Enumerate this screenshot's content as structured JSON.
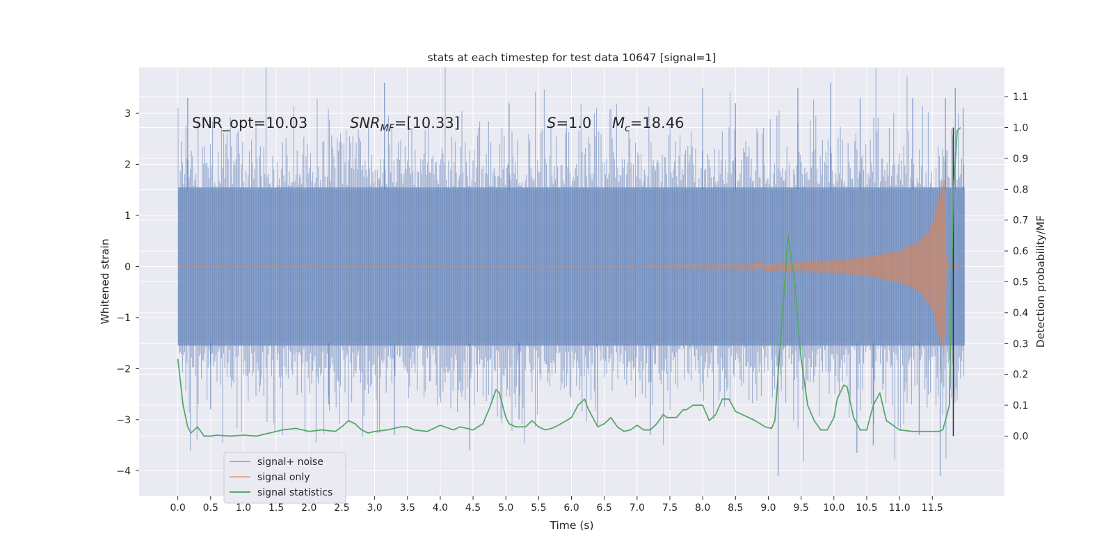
{
  "chart_data": {
    "type": "line",
    "title": "stats at each timestep for test data 10647 [signal=1]",
    "xlabel": "Time (s)",
    "ylabel": "Whitened strain",
    "ylabel_right": "Detection probability/MF",
    "xlim": [
      -0.59,
      12.6
    ],
    "ylim": [
      -4.5,
      3.9
    ],
    "ylim_right": [
      -0.195,
      1.195
    ],
    "x_ticks": [
      0.0,
      0.5,
      1.0,
      1.5,
      2.0,
      2.5,
      3.0,
      3.5,
      4.0,
      4.5,
      5.0,
      5.5,
      6.0,
      6.5,
      7.0,
      7.5,
      8.0,
      8.5,
      9.0,
      9.5,
      10.0,
      10.5,
      11.0,
      11.5
    ],
    "y_ticks": [
      -4,
      -3,
      -2,
      -1,
      0,
      1,
      2,
      3
    ],
    "y_ticks_right": [
      0.0,
      0.1,
      0.2,
      0.3,
      0.4,
      0.5,
      0.6,
      0.7,
      0.8,
      0.9,
      1.0,
      1.1
    ],
    "grid": true,
    "legend_position": "lower-left",
    "colors": {
      "signal_noise": "#4c72b0",
      "signal_only": "#dd8452",
      "statistics": "#55a868",
      "marker_line": "#333333",
      "plot_bg": "#eaeaf2",
      "grid": "#ffffff"
    },
    "annotations": {
      "snr_opt": "SNR_opt=10.03",
      "snr_mf_name": "SNR",
      "snr_mf_sub": "MF",
      "snr_mf_value": "=[10.33]",
      "s_name": "S",
      "s_value": "=1.0",
      "mc_name": "M",
      "mc_sub": "c",
      "mc_value": "=18.46"
    },
    "marker_line": {
      "x": 11.82,
      "y_right_range": [
        0.0,
        1.0
      ]
    },
    "series": [
      {
        "name": "signal+ noise",
        "x_range": [
          0.0,
          12.0
        ],
        "band_typical_abs": 1.55,
        "downward_spikes": [
          [
            0.5,
            -2.8
          ],
          [
            2.3,
            -2.7
          ],
          [
            3.3,
            -3.3
          ],
          [
            4.45,
            -3.6
          ],
          [
            5.2,
            -3.0
          ],
          [
            6.4,
            -3.1
          ],
          [
            7.2,
            -3.3
          ],
          [
            9.15,
            -4.1
          ],
          [
            10.35,
            -3.65
          ],
          [
            10.6,
            -3.5
          ],
          [
            11.3,
            -3.3
          ],
          [
            11.62,
            -4.1
          ]
        ],
        "upward_spikes": [
          [
            0.15,
            3.3
          ],
          [
            3.15,
            3.6
          ],
          [
            5.05,
            3.2
          ],
          [
            8.0,
            3.5
          ],
          [
            8.5,
            3.2
          ],
          [
            9.45,
            3.5
          ],
          [
            9.95,
            3.6
          ],
          [
            10.4,
            3.3
          ],
          [
            11.2,
            3.3
          ],
          [
            11.7,
            3.3
          ],
          [
            11.85,
            3.5
          ],
          [
            11.97,
            3.1
          ]
        ]
      },
      {
        "name": "signal only",
        "envelope": [
          [
            0.0,
            0.01
          ],
          [
            5.0,
            0.015
          ],
          [
            7.0,
            0.03
          ],
          [
            8.0,
            0.05
          ],
          [
            9.0,
            0.08
          ],
          [
            10.0,
            0.13
          ],
          [
            10.5,
            0.19
          ],
          [
            11.0,
            0.32
          ],
          [
            11.3,
            0.5
          ],
          [
            11.5,
            0.85
          ],
          [
            11.62,
            1.5
          ],
          [
            11.68,
            1.75
          ],
          [
            11.72,
            0.0
          ]
        ]
      },
      {
        "name": "signal statistics",
        "x": [
          0.0,
          0.08,
          0.15,
          0.2,
          0.3,
          0.4,
          0.5,
          0.6,
          0.8,
          1.0,
          1.2,
          1.4,
          1.6,
          1.8,
          2.0,
          2.2,
          2.4,
          2.5,
          2.6,
          2.7,
          2.8,
          2.9,
          3.0,
          3.2,
          3.4,
          3.5,
          3.6,
          3.8,
          4.0,
          4.2,
          4.3,
          4.5,
          4.65,
          4.75,
          4.85,
          4.9,
          5.0,
          5.05,
          5.15,
          5.3,
          5.4,
          5.5,
          5.6,
          5.7,
          5.8,
          6.0,
          6.1,
          6.2,
          6.25,
          6.35,
          6.4,
          6.5,
          6.6,
          6.7,
          6.8,
          6.9,
          7.0,
          7.1,
          7.2,
          7.3,
          7.4,
          7.45,
          7.6,
          7.7,
          7.75,
          7.85,
          8.0,
          8.1,
          8.2,
          8.3,
          8.4,
          8.5,
          8.6,
          8.8,
          8.95,
          9.05,
          9.1,
          9.2,
          9.3,
          9.4,
          9.5,
          9.6,
          9.7,
          9.8,
          9.9,
          10.0,
          10.05,
          10.15,
          10.2,
          10.3,
          10.4,
          10.5,
          10.6,
          10.7,
          10.8,
          11.0,
          11.2,
          11.4,
          11.6,
          11.66,
          11.7,
          11.76,
          11.82,
          11.88,
          11.93
        ],
        "values": [
          0.25,
          0.1,
          0.03,
          0.01,
          0.03,
          0.0,
          0.0,
          0.003,
          0.0,
          0.003,
          0.0,
          0.01,
          0.02,
          0.025,
          0.015,
          0.02,
          0.015,
          0.03,
          0.05,
          0.04,
          0.02,
          0.01,
          0.015,
          0.02,
          0.03,
          0.03,
          0.02,
          0.015,
          0.035,
          0.02,
          0.03,
          0.02,
          0.04,
          0.09,
          0.15,
          0.14,
          0.06,
          0.04,
          0.03,
          0.03,
          0.05,
          0.03,
          0.02,
          0.025,
          0.035,
          0.06,
          0.1,
          0.12,
          0.09,
          0.05,
          0.03,
          0.04,
          0.06,
          0.03,
          0.015,
          0.02,
          0.035,
          0.02,
          0.02,
          0.04,
          0.07,
          0.06,
          0.06,
          0.085,
          0.085,
          0.1,
          0.1,
          0.05,
          0.07,
          0.12,
          0.12,
          0.08,
          0.07,
          0.05,
          0.03,
          0.025,
          0.05,
          0.35,
          0.65,
          0.5,
          0.25,
          0.1,
          0.05,
          0.02,
          0.02,
          0.06,
          0.12,
          0.165,
          0.16,
          0.06,
          0.02,
          0.02,
          0.1,
          0.14,
          0.05,
          0.02,
          0.015,
          0.015,
          0.015,
          0.02,
          0.05,
          0.1,
          0.8,
          0.99,
          1.0
        ]
      }
    ]
  }
}
